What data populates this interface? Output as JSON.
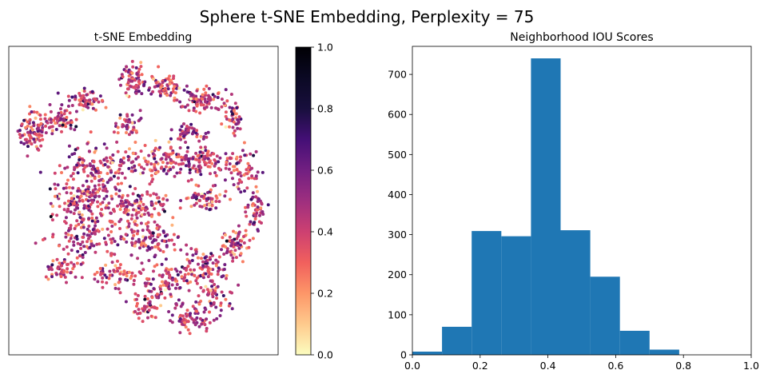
{
  "suptitle": "Sphere t-SNE Embedding, Perplexity = 75",
  "chart_data": [
    {
      "type": "scatter",
      "title": "t-SNE Embedding",
      "xlabel": "",
      "ylabel": "",
      "axis_ticks": false,
      "grid": false,
      "point_color_scale": "magma_r",
      "point_count_approx": 1800,
      "colorbar": {
        "range": [
          0.0,
          1.0
        ],
        "ticks": [
          "0.0",
          "0.2",
          "0.4",
          "0.6",
          "0.8",
          "1.0"
        ],
        "colormap": "magma_r"
      }
    },
    {
      "type": "bar",
      "title": "Neighborhood IOU Scores",
      "xlabel": "",
      "ylabel": "",
      "grid": false,
      "bar_color": "#1f77b4",
      "bins": [
        0.0,
        0.0875,
        0.175,
        0.2625,
        0.35,
        0.4375,
        0.525,
        0.6125,
        0.7,
        0.7875
      ],
      "bin_width": 0.0875,
      "values": [
        8,
        70,
        309,
        296,
        740,
        311,
        195,
        60,
        13,
        0
      ],
      "xlim": [
        0.0,
        1.0
      ],
      "ylim": [
        0,
        770
      ],
      "xticks": [
        "0.0",
        "0.2",
        "0.4",
        "0.6",
        "0.8",
        "1.0"
      ],
      "yticks": [
        "0",
        "100",
        "200",
        "300",
        "400",
        "500",
        "600",
        "700"
      ]
    }
  ]
}
